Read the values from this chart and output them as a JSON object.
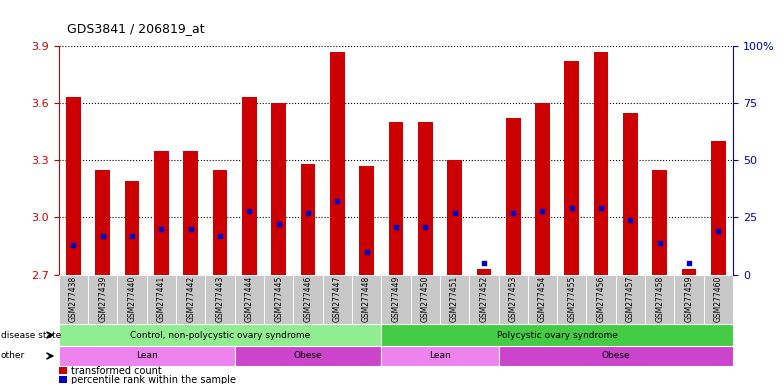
{
  "title": "GDS3841 / 206819_at",
  "samples": [
    "GSM277438",
    "GSM277439",
    "GSM277440",
    "GSM277441",
    "GSM277442",
    "GSM277443",
    "GSM277444",
    "GSM277445",
    "GSM277446",
    "GSM277447",
    "GSM277448",
    "GSM277449",
    "GSM277450",
    "GSM277451",
    "GSM277452",
    "GSM277453",
    "GSM277454",
    "GSM277455",
    "GSM277456",
    "GSM277457",
    "GSM277458",
    "GSM277459",
    "GSM277460"
  ],
  "transformed_count": [
    3.63,
    3.25,
    3.19,
    3.35,
    3.35,
    3.25,
    3.63,
    3.6,
    3.28,
    3.87,
    3.27,
    3.5,
    3.5,
    3.3,
    2.73,
    3.52,
    3.6,
    3.82,
    3.87,
    3.55,
    3.25,
    2.73,
    3.4
  ],
  "percentile": [
    13,
    17,
    17,
    20,
    20,
    17,
    28,
    22,
    27,
    32,
    10,
    21,
    21,
    27,
    5,
    27,
    28,
    29,
    29,
    24,
    14,
    5,
    19
  ],
  "ylim_left": [
    2.7,
    3.9
  ],
  "ylim_right": [
    0,
    100
  ],
  "yticks_left": [
    2.7,
    3.0,
    3.3,
    3.6,
    3.9
  ],
  "yticks_right": [
    0,
    25,
    50,
    75,
    100
  ],
  "ytick_labels_right": [
    "0",
    "25",
    "50",
    "75",
    "100%"
  ],
  "bar_color": "#CC0000",
  "marker_color": "#0000CC",
  "bar_width": 0.5,
  "baseline": 2.7,
  "disease_state_groups": [
    {
      "label": "Control, non-polycystic ovary syndrome",
      "start": 0,
      "end": 11,
      "color": "#90EE90"
    },
    {
      "label": "Polycystic ovary syndrome",
      "start": 11,
      "end": 23,
      "color": "#44CC44"
    }
  ],
  "other_groups": [
    {
      "label": "Lean",
      "start": 0,
      "end": 6,
      "color": "#EE82EE"
    },
    {
      "label": "Obese",
      "start": 6,
      "end": 11,
      "color": "#CC44CC"
    },
    {
      "label": "Lean",
      "start": 11,
      "end": 15,
      "color": "#EE82EE"
    },
    {
      "label": "Obese",
      "start": 15,
      "end": 23,
      "color": "#CC44CC"
    }
  ],
  "legend_items": [
    {
      "label": "transformed count",
      "color": "#CC0000"
    },
    {
      "label": "percentile rank within the sample",
      "color": "#0000CC"
    }
  ],
  "fig_bg": "#FFFFFF",
  "chart_bg": "#FFFFFF",
  "label_area_bg": "#C8C8C8",
  "tick_color_left": "#CC0000",
  "tick_color_right": "#0000CC",
  "grid_linestyle": ":",
  "grid_linewidth": 0.8
}
